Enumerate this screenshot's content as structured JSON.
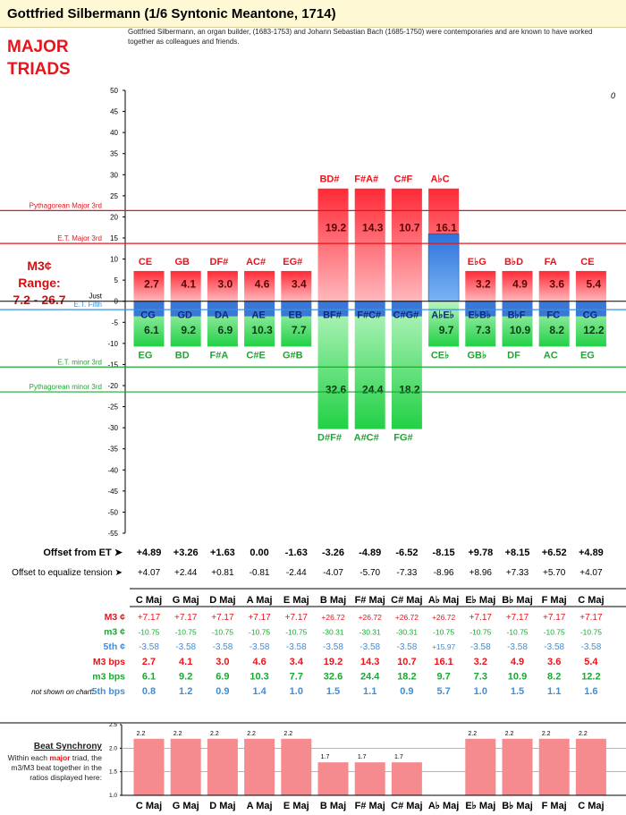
{
  "title": "Gottfried Silbermann (1/6 Syntonic Meantone, 1714)",
  "description": "Gottfried Silbermann, an organ builder, (1683-1753) and Johann Sebastian Bach (1685-1750) were contemporaries and are known to have worked together as colleagues and friends.",
  "section_title_line1": "MAJOR",
  "section_title_line2": "TRIADS",
  "range_label_line1": "M3¢ Range:",
  "range_label_line2": "7.2 - 26.7",
  "corner_mark": "0",
  "colors": {
    "major": "#e8141c",
    "minor": "#1aa832",
    "fifth": "#3c8ede",
    "header_bg": "#fff8d4"
  },
  "chart_data": {
    "type": "bar",
    "ylim": [
      -55,
      50
    ],
    "ytick_step": 5,
    "reference_lines": [
      {
        "label": "Pythagorean Major 3rd",
        "value": 21.5,
        "color": "#e8141c"
      },
      {
        "label": "E.T. Major 3rd",
        "value": 13.7,
        "color": "#e8141c"
      },
      {
        "label": "Just",
        "value": 0,
        "color": "#000000"
      },
      {
        "label": "E.T. Fifth",
        "value": -2.0,
        "color": "#3c8ede"
      },
      {
        "label": "E.T. minor 3rd",
        "value": -15.6,
        "color": "#1aa832"
      },
      {
        "label": "Pythagorean minor 3rd",
        "value": -21.5,
        "color": "#1aa832"
      }
    ],
    "categories": [
      "C Maj",
      "G Maj",
      "D Maj",
      "A Maj",
      "E Maj",
      "B Maj",
      "F# Maj",
      "C# Maj",
      "A♭ Maj",
      "E♭ Maj",
      "B♭ Maj",
      "F Maj",
      "C Maj"
    ],
    "major_third_labels": [
      "CE",
      "GB",
      "DF#",
      "AC#",
      "EG#",
      "BD#",
      "F#A#",
      "C#F",
      "A♭C",
      "E♭G",
      "B♭D",
      "FA",
      "CE"
    ],
    "fifth_labels": [
      "CG",
      "GD",
      "DA",
      "AE",
      "EB",
      "BF#",
      "F#C#",
      "C#G#",
      "A♭E♭",
      "E♭B♭",
      "B♭F",
      "FC",
      "CG"
    ],
    "minor_third_labels": [
      "EG",
      "BD",
      "F#A",
      "C#E",
      "G#B",
      "D#F#",
      "A#C#",
      "FG#",
      "CE♭",
      "GB♭",
      "DF",
      "AC",
      "EG"
    ],
    "offset_label": "Offset from ET ➤",
    "offset_values": [
      "+4.89",
      "+3.26",
      "+1.63",
      "0.00",
      "-1.63",
      "-3.26",
      "-4.89",
      "-6.52",
      "-8.15",
      "+9.78",
      "+8.15",
      "+6.52",
      "+4.89"
    ],
    "tension_label": "Offset to equalize tension ➤",
    "tension_values": [
      "+4.07",
      "+2.44",
      "+0.81",
      "-0.81",
      "-2.44",
      "-4.07",
      "-5.70",
      "-7.33",
      "-8.96",
      "+8.96",
      "+7.33",
      "+5.70",
      "+4.07"
    ],
    "table_rows": [
      {
        "label": "M3 ¢",
        "color": "#e8141c",
        "values": [
          "+7.17",
          "+7.17",
          "+7.17",
          "+7.17",
          "+7.17",
          "+26.72",
          "+26.72",
          "+26.72",
          "+26.72",
          "+7.17",
          "+7.17",
          "+7.17",
          "+7.17"
        ]
      },
      {
        "label": "m3 ¢",
        "color": "#1aa832",
        "values": [
          "-10.75",
          "-10.75",
          "-10.75",
          "-10.75",
          "-10.75",
          "-30.31",
          "-30.31",
          "-30.31",
          "-10.75",
          "-10.75",
          "-10.75",
          "-10.75",
          "-10.75"
        ]
      },
      {
        "label": "5th ¢",
        "color": "#3c8ede",
        "values": [
          "-3.58",
          "-3.58",
          "-3.58",
          "-3.58",
          "-3.58",
          "-3.58",
          "-3.58",
          "-3.58",
          "+15.97",
          "-3.58",
          "-3.58",
          "-3.58",
          "-3.58"
        ]
      },
      {
        "label": "M3 bps",
        "color": "#e8141c",
        "values": [
          "2.7",
          "4.1",
          "3.0",
          "4.6",
          "3.4",
          "19.2",
          "14.3",
          "10.7",
          "16.1",
          "3.2",
          "4.9",
          "3.6",
          "5.4"
        ]
      },
      {
        "label": "m3 bps",
        "color": "#1aa832",
        "values": [
          "6.1",
          "9.2",
          "6.9",
          "10.3",
          "7.7",
          "32.6",
          "24.4",
          "18.2",
          "9.7",
          "7.3",
          "10.9",
          "8.2",
          "12.2"
        ]
      },
      {
        "label": "5th bps",
        "color": "#3c8ede",
        "values": [
          "0.8",
          "1.2",
          "0.9",
          "1.4",
          "1.0",
          "1.5",
          "1.1",
          "0.9",
          "5.7",
          "1.0",
          "1.5",
          "1.1",
          "1.6"
        ]
      }
    ],
    "not_shown_label": "not shown on chart:",
    "beat_sync": {
      "title": "Beat Synchrony",
      "text_before": "Within each",
      "text_emph": "major",
      "text_after": "triad, the m3/M3 beat together in the ratios displayed here:",
      "ylim": [
        1.0,
        2.5
      ],
      "ytick_labels": [
        "1.0",
        "1.5",
        "2.0",
        "2.5"
      ],
      "values": [
        2.2,
        2.2,
        2.2,
        2.2,
        2.2,
        1.7,
        1.7,
        1.7,
        null,
        2.2,
        2.2,
        2.2,
        2.2
      ],
      "value_labels": [
        "2.2",
        "2.2",
        "2.2",
        "2.2",
        "2.2",
        "1.7",
        "1.7",
        "1.7",
        "",
        "2.2",
        "2.2",
        "2.2",
        "2.2"
      ]
    }
  }
}
